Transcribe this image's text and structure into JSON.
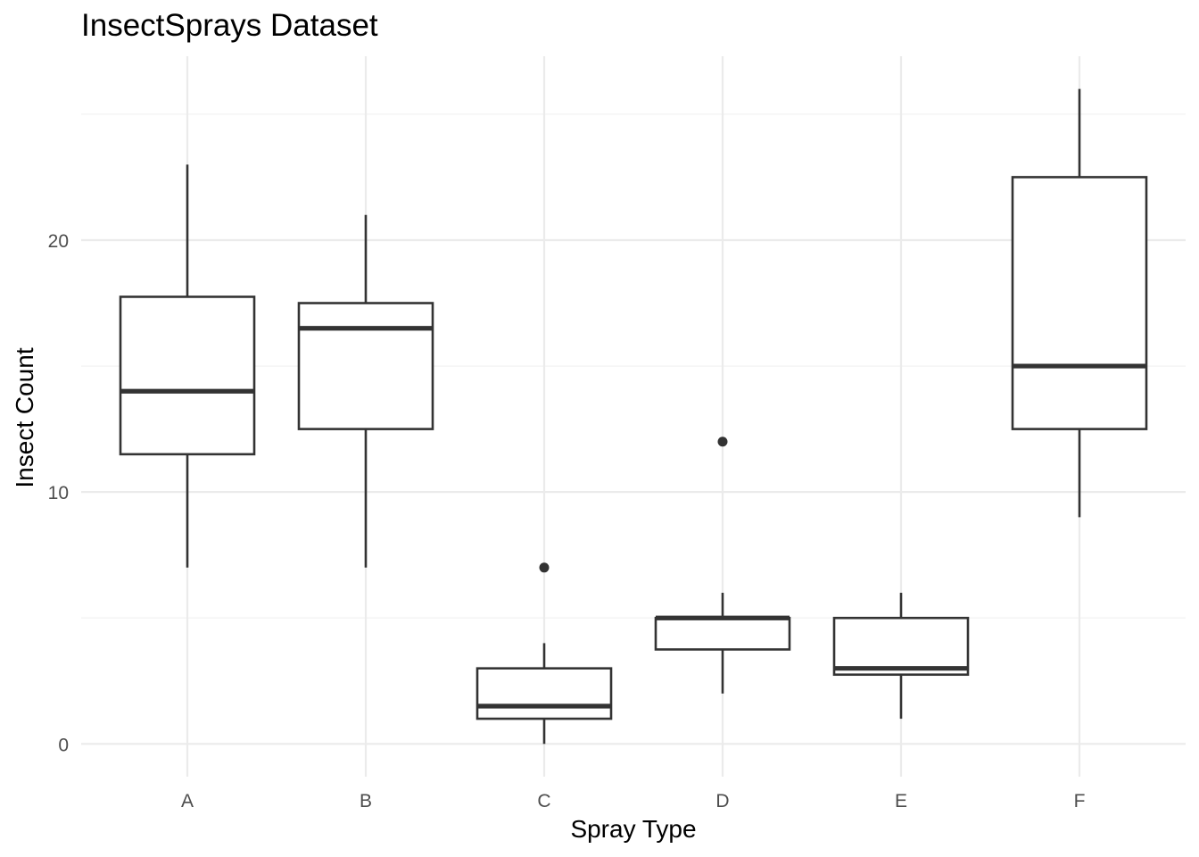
{
  "chart_data": {
    "type": "boxplot",
    "title": "InsectSprays Dataset",
    "xlabel": "Spray Type",
    "ylabel": "Insect Count",
    "categories": [
      "A",
      "B",
      "C",
      "D",
      "E",
      "F"
    ],
    "y_ticks": [
      0,
      10,
      20
    ],
    "y_tick_labels": [
      "0",
      "10",
      "20"
    ],
    "ylim": [
      -1.3,
      27.3
    ],
    "grid": true,
    "legend": "none",
    "boxes": [
      {
        "category": "A",
        "min": 7,
        "q1": 11.5,
        "median": 14,
        "q3": 17.75,
        "max": 23,
        "outliers": []
      },
      {
        "category": "B",
        "min": 7,
        "q1": 12.5,
        "median": 16.5,
        "q3": 17.5,
        "max": 21,
        "outliers": []
      },
      {
        "category": "C",
        "min": 0,
        "q1": 1,
        "median": 1.5,
        "q3": 3,
        "max": 4,
        "outliers": [
          7
        ]
      },
      {
        "category": "D",
        "min": 2,
        "q1": 3.75,
        "median": 5,
        "q3": 5,
        "max": 6,
        "outliers": [
          12
        ]
      },
      {
        "category": "E",
        "min": 1,
        "q1": 2.75,
        "median": 3,
        "q3": 5,
        "max": 6,
        "outliers": []
      },
      {
        "category": "F",
        "min": 9,
        "q1": 12.5,
        "median": 15,
        "q3": 22.5,
        "max": 26,
        "outliers": []
      }
    ],
    "colors": {
      "box_stroke": "#333333",
      "box_fill": "#ffffff",
      "grid": "#ebebeb",
      "tick_text": "#4d4d4d"
    }
  }
}
